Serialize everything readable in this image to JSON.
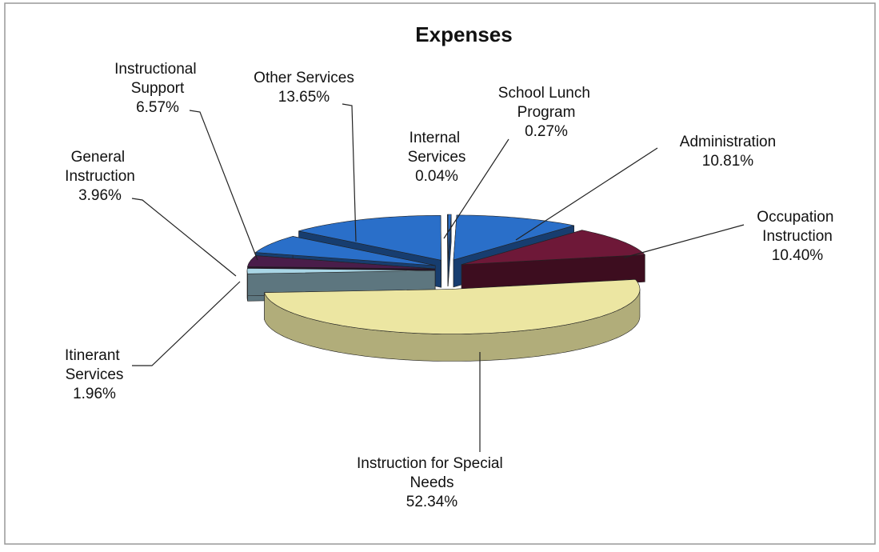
{
  "chart_data": {
    "type": "pie",
    "title": "Expenses",
    "categories": [
      "School Lunch Program",
      "Administration",
      "Occupation Instruction",
      "Instruction for Special Needs",
      "Itinerant Services",
      "General Instruction",
      "Instructional Support",
      "Other Services",
      "Internal Services"
    ],
    "values": [
      0.27,
      10.81,
      10.4,
      52.34,
      1.96,
      3.96,
      6.57,
      13.65,
      0.04
    ],
    "value_labels": [
      "0.27%",
      "10.81%",
      "10.40%",
      "52.34%",
      "1.96%",
      "3.96%",
      "6.57%",
      "13.65%",
      "0.04%"
    ],
    "colors": [
      "#2a6fc9",
      "#2a6fc9",
      "#6e1838",
      "#ece6a2",
      "#a9d6e6",
      "#4a1d4a",
      "#2a6fc9",
      "#2a6fc9",
      "#2a6fc9"
    ]
  }
}
